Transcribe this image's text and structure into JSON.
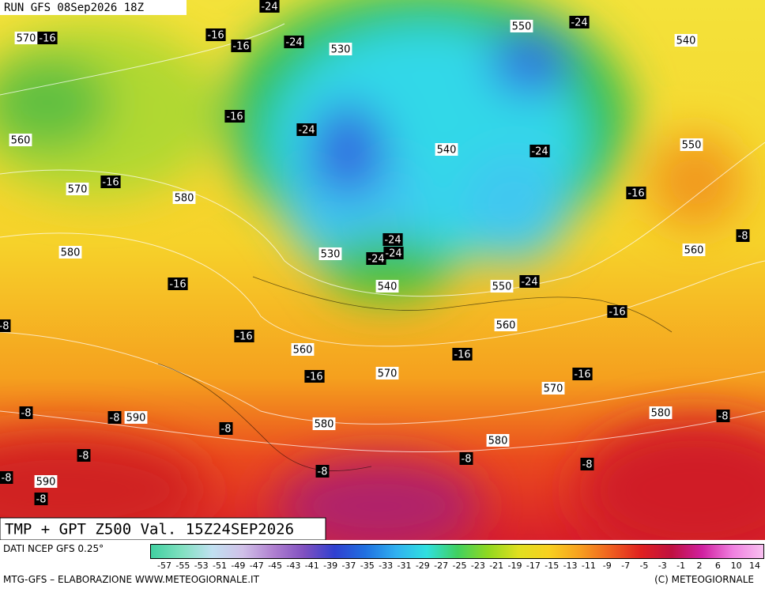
{
  "header": {
    "run": "RUN GFS 08Sep2026 18Z"
  },
  "map": {
    "height_labels": [
      570,
      530,
      550,
      540,
      560,
      570,
      580,
      550,
      540,
      580,
      530,
      540,
      550,
      560,
      560,
      560,
      570,
      570,
      580,
      590,
      580,
      580,
      590
    ],
    "temp_labels": [
      -24,
      -16,
      -16,
      -16,
      -24,
      -24,
      -16,
      -24,
      -24,
      -16,
      -16,
      -8,
      -24,
      -24,
      -24,
      -24,
      -16,
      -8,
      -16,
      -16,
      -16,
      -16,
      -16,
      -8,
      -8,
      -8,
      -8,
      -8,
      -8,
      -8,
      -8,
      -8,
      -8
    ]
  },
  "title": "TMP + GPT Z500 Val. 15Z24SEP2026",
  "footer": {
    "source": "DATI NCEP GFS 0.25°",
    "credit": "MTG-GFS – ELABORAZIONE WWW.METEOGIORNALE.IT",
    "copyright": "(C) METEOGIORNALE"
  },
  "legend": {
    "labels": [
      -57,
      -55,
      -53,
      -51,
      -49,
      -47,
      -45,
      -43,
      -41,
      -39,
      -37,
      -35,
      -33,
      -31,
      -29,
      -27,
      -25,
      -23,
      -21,
      -19,
      -17,
      -15,
      -13,
      -11,
      -9,
      -7,
      -5,
      -3,
      -1,
      2,
      6,
      10,
      14
    ]
  }
}
